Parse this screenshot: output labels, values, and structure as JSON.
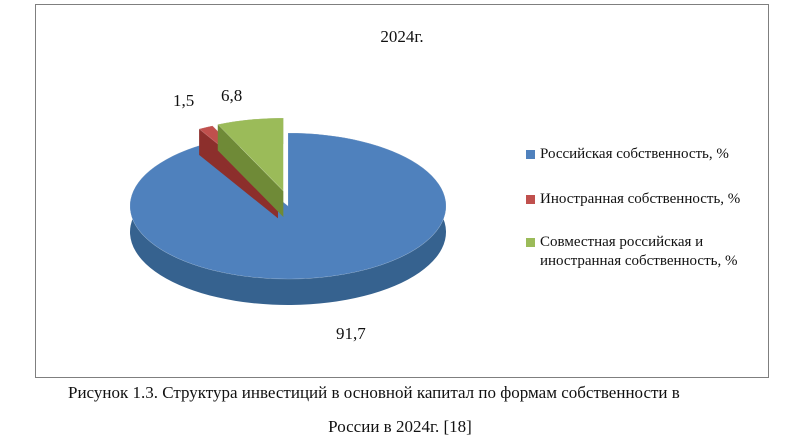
{
  "chart_data": {
    "type": "pie",
    "title": "2024г.",
    "slices": [
      {
        "label": "Российская собственность, %",
        "value": 91.7,
        "display": "91,7",
        "color": "#4f81bd",
        "side_color": "#36628f"
      },
      {
        "label": "Иностранная собственность, %",
        "value": 1.5,
        "display": "1,5",
        "color": "#c0504d",
        "side_color": "#8c2f2c"
      },
      {
        "label": "Совместная российская и иностранная собственность, %",
        "value": 6.8,
        "display": "6,8",
        "color": "#9bbb59",
        "side_color": "#6f8a37"
      }
    ],
    "legend_position": "right",
    "style": "3d-exploded"
  },
  "caption": {
    "line1": "Рисунок 1.3. Структура инвестиций в основной капитал по формам собственности в",
    "line2": "России в 2024г. [18]"
  }
}
